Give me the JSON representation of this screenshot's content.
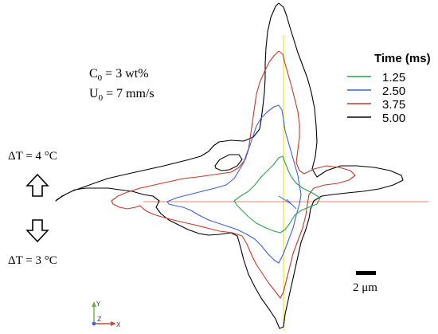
{
  "annotations": {
    "c0": {
      "main": "C",
      "sub": "0",
      "rest": " = 3 wt%"
    },
    "u0": {
      "main": "U",
      "sub": "0",
      "rest": " = 7 mm/s"
    },
    "dt_up": "ΔT = 4 °C",
    "dt_down": "ΔT = 3 °C",
    "scale": "2 μm"
  },
  "legend": {
    "title": "Time (ms)",
    "entries": [
      {
        "label": "1.25",
        "color": "#2ca24a"
      },
      {
        "label": "2.50",
        "color": "#3a62d8"
      },
      {
        "label": "3.75",
        "color": "#c8382a"
      },
      {
        "label": "5.00",
        "color": "#000000"
      }
    ]
  },
  "axes_triad": {
    "y": "Y",
    "z": "Z",
    "x": "X"
  },
  "icons": {
    "up": "hollow-up-arrow-icon",
    "down": "hollow-down-arrow-icon"
  },
  "guide_colors": {
    "vertical": "#e8e000",
    "horizontal": "#e05a40"
  }
}
